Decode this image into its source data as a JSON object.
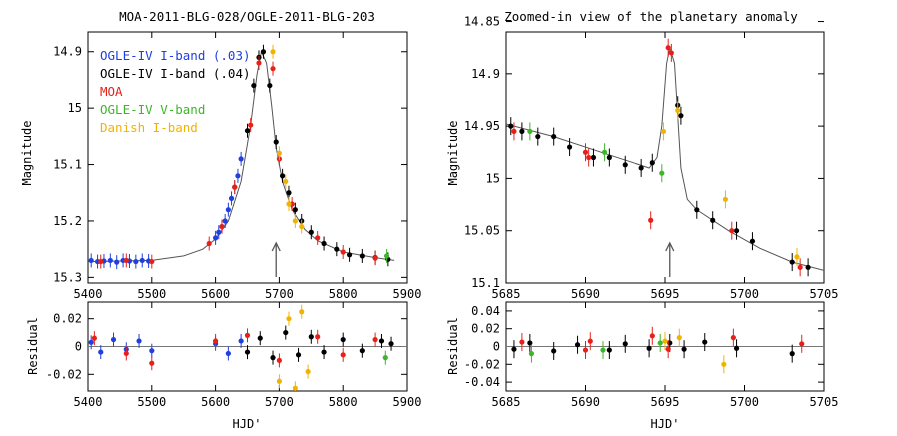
{
  "chart_data": [
    {
      "type": "scatter",
      "title": "MOA-2011-BLG-028/OGLE-2011-BLG-203",
      "xlabel": "",
      "ylabel": "Magnitude",
      "xlim": [
        5400,
        5900
      ],
      "ylim": [
        15.31,
        14.865
      ],
      "y_inverted": true,
      "x_ticks": [
        "5400",
        "5500",
        "5600",
        "5700",
        "5800",
        "5900"
      ],
      "y_ticks": [
        "14.9",
        "15",
        "15.1",
        "15.2",
        "15.3"
      ],
      "legend": {
        "placement": "top-left",
        "entries": [
          {
            "label": "OGLE-IV I-band (.03)",
            "color": "#1f3fe0"
          },
          {
            "label": "OGLE-IV I-band (.04)",
            "color": "#000000"
          },
          {
            "label": "MOA",
            "color": "#e8201a"
          },
          {
            "label": "OGLE-IV V-band",
            "color": "#3db62a"
          },
          {
            "label": "Danish I-band",
            "color": "#f0b400"
          }
        ]
      },
      "model": {
        "x": [
          5400,
          5500,
          5550,
          5580,
          5600,
          5620,
          5640,
          5655,
          5665,
          5672,
          5680,
          5688,
          5695,
          5705,
          5720,
          5740,
          5760,
          5800,
          5850,
          5880
        ],
        "y": [
          15.272,
          15.27,
          15.262,
          15.25,
          15.232,
          15.2,
          15.13,
          15.03,
          14.94,
          14.9,
          14.92,
          14.995,
          15.07,
          15.13,
          15.18,
          15.215,
          15.235,
          15.255,
          15.265,
          15.27
        ]
      },
      "arrow": {
        "x": 5695,
        "label": ""
      },
      "series": [
        {
          "name": "OGLE-IV I-band (.03)",
          "x": [
            5405,
            5415,
            5425,
            5435,
            5445,
            5455,
            5465,
            5475,
            5485,
            5495,
            5600,
            5605,
            5610,
            5615,
            5620,
            5625,
            5630,
            5635,
            5640
          ],
          "y": [
            15.27,
            15.272,
            15.271,
            15.27,
            15.273,
            15.27,
            15.271,
            15.272,
            15.27,
            15.271,
            15.23,
            15.22,
            15.21,
            15.2,
            15.18,
            15.16,
            15.14,
            15.12,
            15.09
          ]
        },
        {
          "name": "OGLE-IV I-band (.04)",
          "x": [
            5650,
            5660,
            5668,
            5675,
            5685,
            5695,
            5705,
            5715,
            5725,
            5735,
            5750,
            5770,
            5790,
            5810,
            5830,
            5850,
            5870
          ],
          "y": [
            15.04,
            14.96,
            14.91,
            14.9,
            14.96,
            15.06,
            15.12,
            15.15,
            15.18,
            15.2,
            15.22,
            15.24,
            15.25,
            15.26,
            15.262,
            15.265,
            15.268
          ]
        },
        {
          "name": "MOA",
          "x": [
            5420,
            5460,
            5500,
            5590,
            5610,
            5630,
            5655,
            5668,
            5690,
            5700,
            5720,
            5760,
            5800,
            5850
          ],
          "y": [
            15.272,
            15.27,
            15.272,
            15.24,
            15.21,
            15.14,
            15.03,
            14.92,
            14.93,
            15.09,
            15.17,
            15.23,
            15.255,
            15.266
          ]
        },
        {
          "name": "OGLE-IV V-band",
          "x": [
            5868
          ],
          "y": [
            15.262
          ]
        },
        {
          "name": "Danish I-band",
          "x": [
            5690,
            5700,
            5710,
            5715,
            5725,
            5735
          ],
          "y": [
            14.9,
            15.08,
            15.13,
            15.17,
            15.2,
            15.21
          ]
        }
      ]
    },
    {
      "type": "scatter",
      "title": "Zoomed-in view of the planetary anomaly",
      "xlabel": "",
      "ylabel": "Magnitude",
      "xlim": [
        5685,
        5705
      ],
      "ylim": [
        15.1,
        14.86
      ],
      "y_inverted": true,
      "x_ticks": [
        "5685",
        "5690",
        "5695",
        "5700",
        "5705"
      ],
      "y_ticks": [
        "14.85",
        "14.9",
        "14.95",
        "15",
        "15.05",
        "15.1"
      ],
      "model": {
        "x": [
          5685,
          5688,
          5691,
          5693,
          5694,
          5694.5,
          5694.8,
          5695.1,
          5695.3,
          5695.6,
          5696,
          5696.4,
          5697,
          5699,
          5701,
          5703,
          5705
        ],
        "y": [
          14.948,
          14.96,
          14.975,
          14.985,
          14.99,
          14.98,
          14.95,
          14.89,
          14.875,
          14.89,
          14.99,
          15.02,
          15.03,
          15.05,
          15.067,
          15.08,
          15.088
        ]
      },
      "arrow": {
        "x": 5695.3,
        "label": ""
      },
      "series": [
        {
          "name": "OGLE-IV I-band (.04)",
          "x": [
            5685.3,
            5686,
            5687,
            5688,
            5689,
            5690.5,
            5691.5,
            5692.5,
            5693.5,
            5694.2,
            5695.8,
            5696,
            5697,
            5698,
            5699.5,
            5700.5,
            5703,
            5704
          ],
          "y": [
            14.95,
            14.955,
            14.96,
            14.96,
            14.97,
            14.98,
            14.98,
            14.987,
            14.99,
            14.985,
            14.93,
            14.94,
            15.03,
            15.04,
            15.05,
            15.06,
            15.08,
            15.085
          ]
        },
        {
          "name": "MOA",
          "x": [
            5685.5,
            5690,
            5690.2,
            5694.1,
            5695.2,
            5695.4,
            5699.2,
            5703.5
          ],
          "y": [
            14.955,
            14.975,
            14.98,
            15.04,
            14.875,
            14.88,
            15.05,
            15.085
          ]
        },
        {
          "name": "OGLE-IV V-band",
          "x": [
            5686.5,
            5691.2,
            5694.8
          ],
          "y": [
            14.955,
            14.975,
            14.995
          ]
        },
        {
          "name": "Danish I-band",
          "x": [
            5694.9,
            5695.8,
            5698.8,
            5703.3
          ],
          "y": [
            14.955,
            14.935,
            15.02,
            15.075
          ]
        }
      ]
    },
    {
      "type": "scatter",
      "title": "",
      "xlabel": "HJD'",
      "ylabel": "Residual",
      "xlim": [
        5400,
        5900
      ],
      "ylim": [
        -0.032,
        0.032
      ],
      "y_inverted": true,
      "x_ticks": [
        "5400",
        "5500",
        "5600",
        "5700",
        "5800",
        "5900"
      ],
      "y_ticks": [
        "-0.02",
        "0",
        "0.02"
      ],
      "zero_line": true,
      "series": [
        {
          "name": "OGLE-IV I-band (.03)",
          "x": [
            5405,
            5420,
            5440,
            5460,
            5480,
            5500,
            5600,
            5620,
            5640
          ],
          "y": [
            0.003,
            -0.004,
            0.005,
            -0.002,
            0.004,
            -0.003,
            0.002,
            -0.005,
            0.004
          ]
        },
        {
          "name": "OGLE-IV I-band (.04)",
          "x": [
            5650,
            5670,
            5690,
            5710,
            5730,
            5750,
            5770,
            5800,
            5830,
            5860,
            5875
          ],
          "y": [
            -0.004,
            0.006,
            -0.008,
            0.01,
            -0.006,
            0.007,
            -0.004,
            0.005,
            -0.003,
            0.004,
            0.002
          ]
        },
        {
          "name": "MOA",
          "x": [
            5410,
            5460,
            5500,
            5600,
            5650,
            5700,
            5760,
            5800,
            5850
          ],
          "y": [
            0.006,
            -0.005,
            -0.012,
            0.004,
            0.008,
            -0.01,
            0.007,
            -0.006,
            0.005
          ]
        },
        {
          "name": "OGLE-IV V-band",
          "x": [
            5866
          ],
          "y": [
            -0.008
          ]
        },
        {
          "name": "Danish I-band",
          "x": [
            5700,
            5715,
            5725,
            5735,
            5745
          ],
          "y": [
            -0.025,
            0.02,
            -0.03,
            0.025,
            -0.018
          ]
        }
      ]
    },
    {
      "type": "scatter",
      "title": "",
      "xlabel": "HJD'",
      "ylabel": "Residual",
      "xlim": [
        5685,
        5705
      ],
      "ylim": [
        -0.05,
        0.05
      ],
      "y_inverted": true,
      "x_ticks": [
        "5685",
        "5690",
        "5695",
        "5700",
        "5705"
      ],
      "y_ticks": [
        "-0.04",
        "-0.02",
        "0",
        "0.02",
        "0.04"
      ],
      "zero_line": true,
      "series": [
        {
          "name": "OGLE-IV I-band (.04)",
          "x": [
            5685.5,
            5686.5,
            5688,
            5689.5,
            5691.5,
            5692.5,
            5694,
            5695.3,
            5696.2,
            5697.5,
            5699.5,
            5703
          ],
          "y": [
            -0.003,
            0.004,
            -0.005,
            0.002,
            -0.004,
            0.003,
            -0.002,
            0.004,
            -0.003,
            0.005,
            -0.002,
            -0.008
          ]
        },
        {
          "name": "MOA",
          "x": [
            5686,
            5690,
            5690.3,
            5694.2,
            5695.2,
            5699.3,
            5703.6
          ],
          "y": [
            0.005,
            -0.004,
            0.006,
            0.012,
            -0.003,
            0.01,
            0.003
          ]
        },
        {
          "name": "OGLE-IV V-band",
          "x": [
            5686.6,
            5691.1,
            5694.7
          ],
          "y": [
            -0.008,
            -0.004,
            0.004
          ]
        },
        {
          "name": "Danish I-band",
          "x": [
            5695,
            5695.9,
            5698.7
          ],
          "y": [
            0.006,
            0.01,
            -0.02
          ]
        }
      ]
    }
  ]
}
